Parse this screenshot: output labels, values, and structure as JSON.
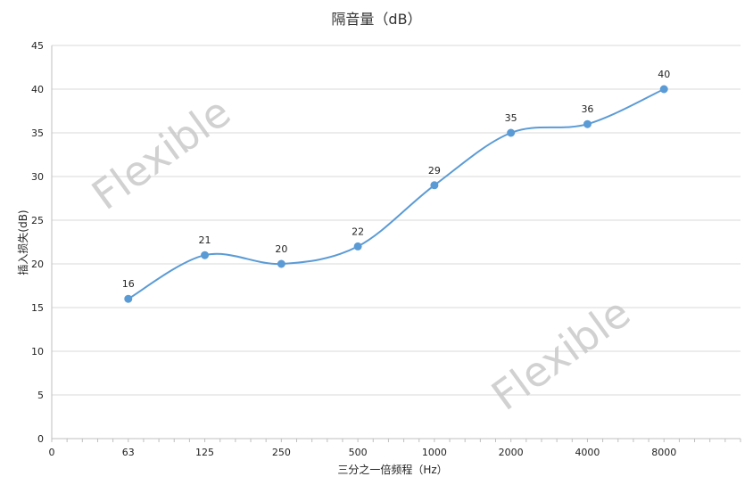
{
  "chart_data": {
    "type": "line",
    "title": "隔音量（dB）",
    "xlabel": "三分之一倍频程（Hz）",
    "ylabel": "插入损失(dB)",
    "x_origin_label": "0",
    "categories": [
      "63",
      "125",
      "250",
      "500",
      "1000",
      "2000",
      "4000",
      "8000"
    ],
    "series": [
      {
        "values": [
          16,
          21,
          20,
          22,
          29,
          35,
          36,
          40
        ]
      }
    ],
    "ylim": [
      0,
      45
    ],
    "yticks": [
      0,
      5,
      10,
      15,
      20,
      25,
      30,
      35,
      40,
      45
    ],
    "grid": true,
    "smooth": true,
    "line_color": "#5b9bd5",
    "marker_color": "#5b9bd5",
    "watermarks": [
      "Flexible",
      "Flexible"
    ]
  }
}
